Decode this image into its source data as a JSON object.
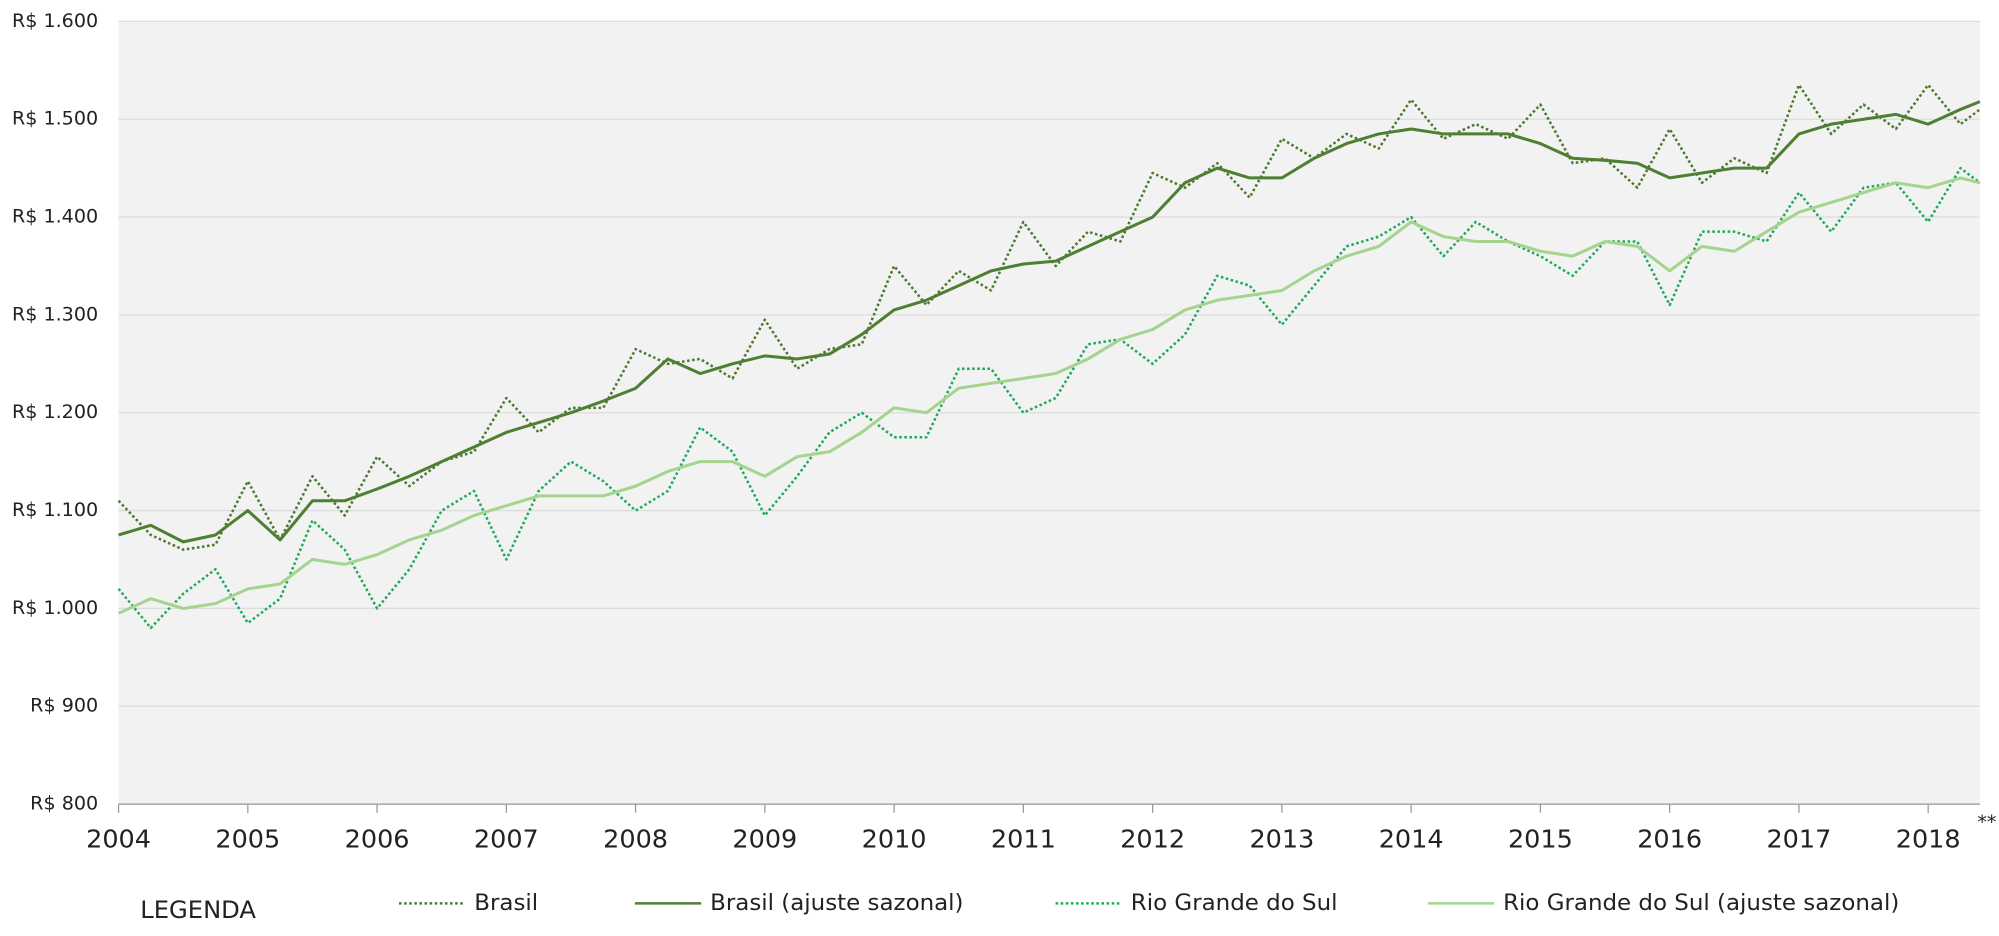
{
  "chart_data": {
    "type": "line",
    "annotation": "**",
    "legend_title": "LEGENDA",
    "grid": true,
    "legend": "bottom",
    "x": [
      2004,
      2004.25,
      2004.5,
      2004.75,
      2005,
      2005.25,
      2005.5,
      2005.75,
      2006,
      2006.25,
      2006.5,
      2006.75,
      2007,
      2007.25,
      2007.5,
      2007.75,
      2008,
      2008.25,
      2008.5,
      2008.75,
      2009,
      2009.25,
      2009.5,
      2009.75,
      2010,
      2010.25,
      2010.5,
      2010.75,
      2011,
      2011.25,
      2011.5,
      2011.75,
      2012,
      2012.25,
      2012.5,
      2012.75,
      2013,
      2013.25,
      2013.5,
      2013.75,
      2014,
      2014.25,
      2014.5,
      2014.75,
      2015,
      2015.25,
      2015.5,
      2015.75,
      2016,
      2016.25,
      2016.5,
      2016.75,
      2017,
      2017.25,
      2017.5,
      2017.75,
      2018,
      2018.25,
      2018.4
    ],
    "xlim": [
      2004,
      2018.4
    ],
    "xticks": [
      2004,
      2005,
      2006,
      2007,
      2008,
      2009,
      2010,
      2011,
      2012,
      2013,
      2014,
      2015,
      2016,
      2017,
      2018
    ],
    "ylim": [
      800,
      1600
    ],
    "yticks": [
      {
        "value": 800,
        "label": "R$ 800"
      },
      {
        "value": 900,
        "label": "R$ 900"
      },
      {
        "value": 1000,
        "label": "R$ 1.000"
      },
      {
        "value": 1100,
        "label": "R$ 1.100"
      },
      {
        "value": 1200,
        "label": "R$ 1.200"
      },
      {
        "value": 1300,
        "label": "R$ 1.300"
      },
      {
        "value": 1400,
        "label": "R$ 1.400"
      },
      {
        "value": 1500,
        "label": "R$ 1.500"
      },
      {
        "value": 1600,
        "label": "R$ 1.600"
      }
    ],
    "series": [
      {
        "name": "Brasil",
        "color": "#4a7a2e",
        "style": "dotted",
        "values": [
          1110,
          1075,
          1060,
          1065,
          1130,
          1070,
          1135,
          1095,
          1155,
          1125,
          1150,
          1160,
          1215,
          1180,
          1205,
          1205,
          1265,
          1250,
          1255,
          1235,
          1295,
          1245,
          1265,
          1270,
          1350,
          1310,
          1345,
          1325,
          1395,
          1350,
          1385,
          1375,
          1445,
          1430,
          1455,
          1420,
          1480,
          1460,
          1485,
          1470,
          1520,
          1480,
          1495,
          1480,
          1515,
          1455,
          1460,
          1430,
          1490,
          1435,
          1460,
          1445,
          1535,
          1485,
          1515,
          1490,
          1535,
          1495,
          1510
        ]
      },
      {
        "name": "Brasil (ajuste sazonal)",
        "color": "#4e7f32",
        "style": "solid",
        "values": [
          1075,
          1085,
          1068,
          1075,
          1100,
          1070,
          1110,
          1110,
          1122,
          1135,
          1150,
          1165,
          1180,
          1190,
          1200,
          1212,
          1225,
          1255,
          1240,
          1250,
          1258,
          1255,
          1260,
          1280,
          1305,
          1315,
          1330,
          1345,
          1352,
          1355,
          1370,
          1385,
          1400,
          1435,
          1450,
          1440,
          1440,
          1460,
          1475,
          1485,
          1490,
          1485,
          1485,
          1485,
          1475,
          1460,
          1458,
          1455,
          1440,
          1445,
          1450,
          1450,
          1485,
          1495,
          1500,
          1505,
          1495,
          1510,
          1518
        ]
      },
      {
        "name": "Rio Grande do Sul",
        "color": "#1faa5a",
        "style": "dotted",
        "values": [
          1020,
          980,
          1015,
          1040,
          985,
          1010,
          1090,
          1060,
          1000,
          1040,
          1100,
          1120,
          1050,
          1120,
          1150,
          1130,
          1100,
          1120,
          1185,
          1160,
          1095,
          1135,
          1180,
          1200,
          1175,
          1175,
          1245,
          1245,
          1200,
          1215,
          1270,
          1275,
          1250,
          1280,
          1340,
          1330,
          1290,
          1330,
          1370,
          1380,
          1400,
          1360,
          1395,
          1375,
          1360,
          1340,
          1375,
          1375,
          1310,
          1385,
          1385,
          1375,
          1425,
          1385,
          1430,
          1435,
          1395,
          1450,
          1435
        ]
      },
      {
        "name": "Rio Grande do Sul (ajuste sazonal)",
        "color": "#a5d48f",
        "style": "solid",
        "values": [
          995,
          1010,
          1000,
          1005,
          1020,
          1025,
          1050,
          1045,
          1055,
          1070,
          1080,
          1095,
          1105,
          1115,
          1115,
          1115,
          1125,
          1140,
          1150,
          1150,
          1135,
          1155,
          1160,
          1180,
          1205,
          1200,
          1225,
          1230,
          1235,
          1240,
          1255,
          1275,
          1285,
          1305,
          1315,
          1320,
          1325,
          1345,
          1360,
          1370,
          1395,
          1380,
          1375,
          1375,
          1365,
          1360,
          1375,
          1370,
          1345,
          1370,
          1365,
          1385,
          1405,
          1415,
          1425,
          1435,
          1430,
          1440,
          1435
        ]
      }
    ]
  }
}
